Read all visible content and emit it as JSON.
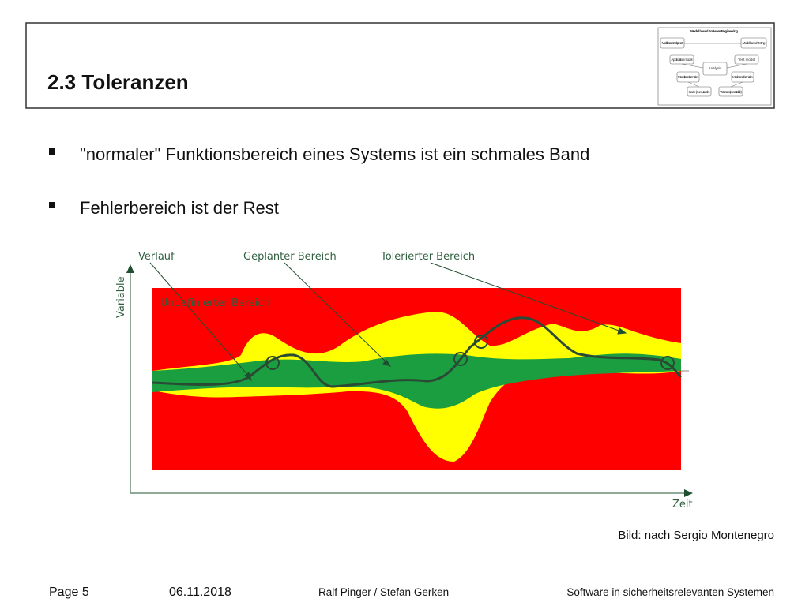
{
  "header": {
    "title": "2.3 Toleranzen",
    "logo": {
      "title": "Model based Software Engineering",
      "nodes": [
        "Model based Development",
        "Model based Testing",
        "Application model",
        "Test model",
        "Analysis",
        "Modeltrans-formation",
        "Modeltrans-formation",
        "Code (executable)",
        "Testcases (executable)"
      ]
    }
  },
  "bullets": [
    "\"normaler\" Funktionsbereich eines Systems ist ein schmales Band",
    "Fehlerbereich ist der Rest"
  ],
  "figure": {
    "labels": [
      "Verlauf",
      "Geplanter Bereich",
      "Tolerierter Bereich"
    ],
    "region": "Undefinierter Bereich",
    "y_axis": "Variable",
    "x_axis": "Zeit",
    "caption": "Bild: nach Sergio Montenegro"
  },
  "footer": {
    "page": "Page 5",
    "date": "06.11.2018",
    "authors": "Ralf Pinger / Stefan Gerken",
    "course": "Software in sicherheitsrelevanten Systemen"
  }
}
